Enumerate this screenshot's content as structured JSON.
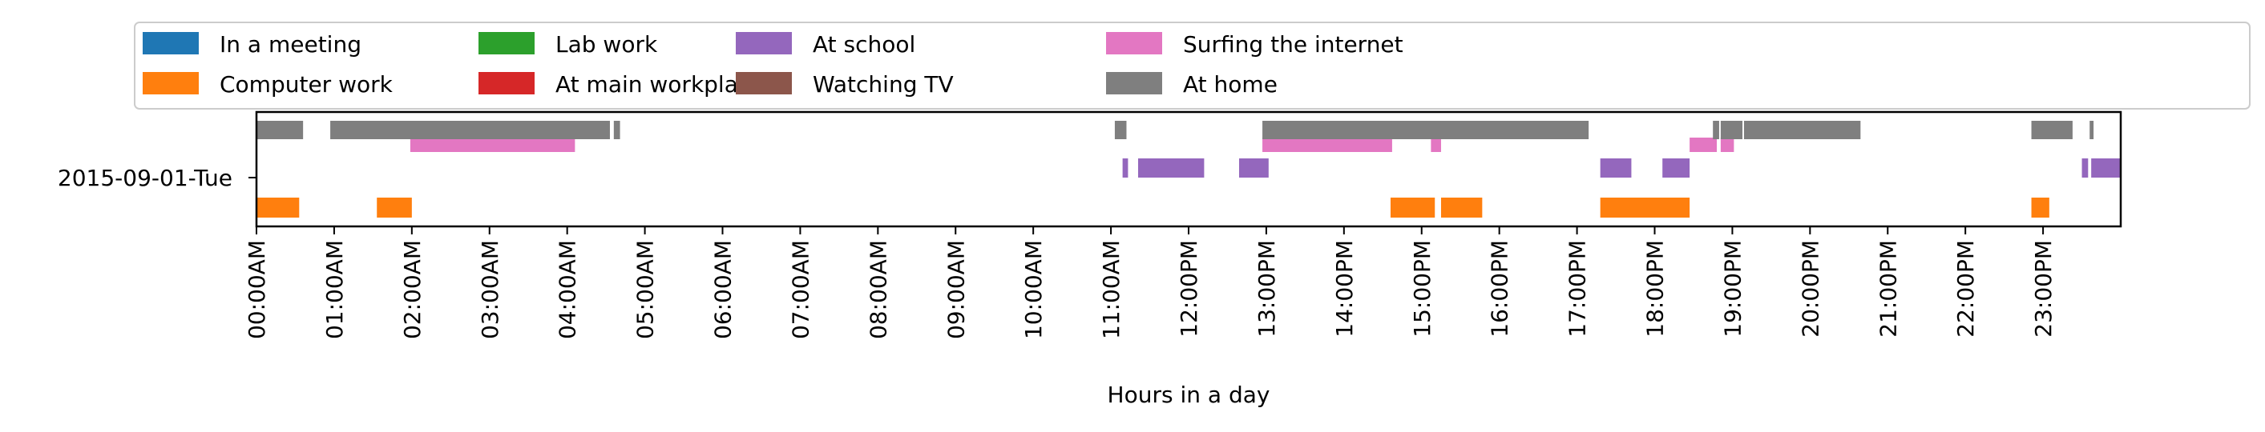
{
  "chart_data": {
    "type": "timeline",
    "title": "",
    "xlabel": "Hours in a day",
    "ylabel": "",
    "x_range_hours": [
      0,
      24
    ],
    "x_ticks": [
      "00:00AM",
      "01:00AM",
      "02:00AM",
      "03:00AM",
      "04:00AM",
      "05:00AM",
      "06:00AM",
      "07:00AM",
      "08:00AM",
      "09:00AM",
      "10:00AM",
      "11:00AM",
      "12:00PM",
      "13:00PM",
      "14:00PM",
      "15:00PM",
      "16:00PM",
      "17:00PM",
      "18:00PM",
      "19:00PM",
      "20:00PM",
      "21:00PM",
      "22:00PM",
      "23:00PM"
    ],
    "y_category": "2015-09-01-Tue",
    "legend": {
      "position": "top",
      "columns": 7
    },
    "series": [
      {
        "name": "In a meeting",
        "color": "#1f77b4",
        "segments": []
      },
      {
        "name": "Computer work",
        "color": "#ff7f0e",
        "segments": [
          [
            0.0,
            0.55
          ],
          [
            1.55,
            2.0
          ],
          [
            14.6,
            15.17
          ],
          [
            15.25,
            15.78
          ],
          [
            17.3,
            18.45
          ],
          [
            22.85,
            23.08
          ]
        ]
      },
      {
        "name": "Lab work",
        "color": "#2ca02c",
        "segments": []
      },
      {
        "name": "At main workplace",
        "color": "#d62728",
        "segments": []
      },
      {
        "name": "At school",
        "color": "#9467bd",
        "segments": [
          [
            11.15,
            11.22
          ],
          [
            11.35,
            12.2
          ],
          [
            12.65,
            13.03
          ],
          [
            17.3,
            17.7
          ],
          [
            18.1,
            18.45
          ],
          [
            23.5,
            23.58
          ],
          [
            23.62,
            24.0
          ]
        ]
      },
      {
        "name": "Watching TV",
        "color": "#8c564b",
        "segments": []
      },
      {
        "name": "Surfing the internet",
        "color": "#e377c2",
        "segments": [
          [
            1.98,
            4.1
          ],
          [
            12.95,
            14.62
          ],
          [
            15.12,
            15.25
          ],
          [
            18.45,
            18.8
          ],
          [
            18.85,
            19.02
          ]
        ]
      },
      {
        "name": "At home",
        "color": "#7f7f7f",
        "segments": [
          [
            0.0,
            0.6
          ],
          [
            0.95,
            4.55
          ],
          [
            4.6,
            4.68
          ],
          [
            11.05,
            11.2
          ],
          [
            12.95,
            17.15
          ],
          [
            18.75,
            18.83
          ],
          [
            18.85,
            19.13
          ],
          [
            19.15,
            20.65
          ],
          [
            22.85,
            23.38
          ],
          [
            23.6,
            23.65
          ]
        ]
      }
    ]
  }
}
